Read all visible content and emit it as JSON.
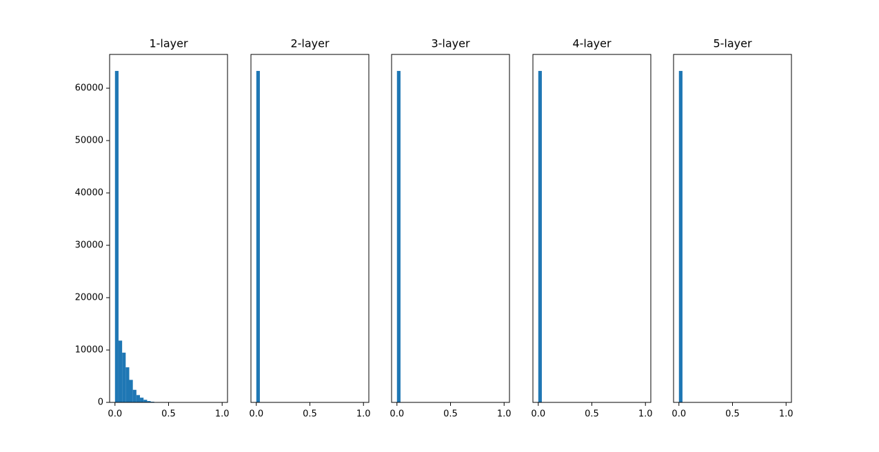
{
  "chart_data": [
    {
      "type": "histogram",
      "title": "1-layer",
      "color": "#1f77b4",
      "bins": [
        0,
        0.0333,
        0.0667,
        0.1,
        0.1333,
        0.1667,
        0.2,
        0.2333,
        0.2667,
        0.3,
        0.3333,
        0.3667,
        0.4,
        0.4333,
        0.4667,
        0.5,
        0.5333,
        0.5667,
        0.6,
        0.6333,
        0.6667,
        0.7,
        0.7333,
        0.7667,
        0.8,
        0.8333,
        0.8667,
        0.9,
        0.9333,
        0.9667,
        1
      ],
      "values": [
        63300,
        11800,
        9500,
        6700,
        4300,
        2400,
        1400,
        900,
        500,
        260,
        130,
        60,
        30,
        10,
        5,
        0,
        0,
        0,
        0,
        0,
        0,
        0,
        0,
        0,
        0,
        0,
        0,
        0,
        0,
        0
      ],
      "xlim": [
        -0.05,
        1.05
      ],
      "xticks": [
        {
          "value": 0,
          "label": "0.0"
        },
        0.5,
        {
          "value": 1,
          "label": "1.0"
        }
      ],
      "ylim": [
        0,
        66450
      ],
      "yticks": [
        0,
        10000,
        20000,
        30000,
        40000,
        50000,
        60000
      ]
    },
    {
      "type": "histogram",
      "title": "2-layer",
      "color": "#1f77b4",
      "bins": [
        0,
        0.0333,
        0.0667,
        0.1,
        0.1333,
        0.1667,
        0.2,
        0.2333,
        0.2667,
        0.3,
        0.3333,
        0.3667,
        0.4,
        0.4333,
        0.4667,
        0.5,
        0.5333,
        0.5667,
        0.6,
        0.6333,
        0.6667,
        0.7,
        0.7333,
        0.7667,
        0.8,
        0.8333,
        0.8667,
        0.9,
        0.9333,
        0.9667,
        1
      ],
      "values": [
        63300,
        0,
        0,
        0,
        0,
        0,
        0,
        0,
        0,
        0,
        0,
        0,
        0,
        0,
        0,
        0,
        0,
        0,
        0,
        0,
        0,
        0,
        0,
        0,
        0,
        0,
        0,
        0,
        0,
        0
      ],
      "xlim": [
        -0.05,
        1.05
      ],
      "xticks": [
        {
          "value": 0,
          "label": "0.0"
        },
        0.5,
        {
          "value": 1,
          "label": "1.0"
        }
      ],
      "ylim": [
        0,
        66450
      ]
    },
    {
      "type": "histogram",
      "title": "3-layer",
      "color": "#1f77b4",
      "bins": [
        0,
        0.0333,
        0.0667,
        0.1,
        0.1333,
        0.1667,
        0.2,
        0.2333,
        0.2667,
        0.3,
        0.3333,
        0.3667,
        0.4,
        0.4333,
        0.4667,
        0.5,
        0.5333,
        0.5667,
        0.6,
        0.6333,
        0.6667,
        0.7,
        0.7333,
        0.7667,
        0.8,
        0.8333,
        0.8667,
        0.9,
        0.9333,
        0.9667,
        1
      ],
      "values": [
        63300,
        0,
        0,
        0,
        0,
        0,
        0,
        0,
        0,
        0,
        0,
        0,
        0,
        0,
        0,
        0,
        0,
        0,
        0,
        0,
        0,
        0,
        0,
        0,
        0,
        0,
        0,
        0,
        0,
        0
      ],
      "xlim": [
        -0.05,
        1.05
      ],
      "xticks": [
        {
          "value": 0,
          "label": "0.0"
        },
        0.5,
        {
          "value": 1,
          "label": "1.0"
        }
      ],
      "ylim": [
        0,
        66450
      ]
    },
    {
      "type": "histogram",
      "title": "4-layer",
      "color": "#1f77b4",
      "bins": [
        0,
        0.0333,
        0.0667,
        0.1,
        0.1333,
        0.1667,
        0.2,
        0.2333,
        0.2667,
        0.3,
        0.3333,
        0.3667,
        0.4,
        0.4333,
        0.4667,
        0.5,
        0.5333,
        0.5667,
        0.6,
        0.6333,
        0.6667,
        0.7,
        0.7333,
        0.7667,
        0.8,
        0.8333,
        0.8667,
        0.9,
        0.9333,
        0.9667,
        1
      ],
      "values": [
        63300,
        0,
        0,
        0,
        0,
        0,
        0,
        0,
        0,
        0,
        0,
        0,
        0,
        0,
        0,
        0,
        0,
        0,
        0,
        0,
        0,
        0,
        0,
        0,
        0,
        0,
        0,
        0,
        0,
        0
      ],
      "xlim": [
        -0.05,
        1.05
      ],
      "xticks": [
        {
          "value": 0,
          "label": "0.0"
        },
        0.5,
        {
          "value": 1,
          "label": "1.0"
        }
      ],
      "ylim": [
        0,
        66450
      ]
    },
    {
      "type": "histogram",
      "title": "5-layer",
      "color": "#1f77b4",
      "bins": [
        0,
        0.0333,
        0.0667,
        0.1,
        0.1333,
        0.1667,
        0.2,
        0.2333,
        0.2667,
        0.3,
        0.3333,
        0.3667,
        0.4,
        0.4333,
        0.4667,
        0.5,
        0.5333,
        0.5667,
        0.6,
        0.6333,
        0.6667,
        0.7,
        0.7333,
        0.7667,
        0.8,
        0.8333,
        0.8667,
        0.9,
        0.9333,
        0.9667,
        1
      ],
      "values": [
        63300,
        0,
        0,
        0,
        0,
        0,
        0,
        0,
        0,
        0,
        0,
        0,
        0,
        0,
        0,
        0,
        0,
        0,
        0,
        0,
        0,
        0,
        0,
        0,
        0,
        0,
        0,
        0,
        0,
        0
      ],
      "xlim": [
        -0.05,
        1.05
      ],
      "xticks": [
        {
          "value": 0,
          "label": "0.0"
        },
        0.5,
        {
          "value": 1,
          "label": "1.0"
        }
      ],
      "ylim": [
        0,
        66450
      ]
    }
  ]
}
